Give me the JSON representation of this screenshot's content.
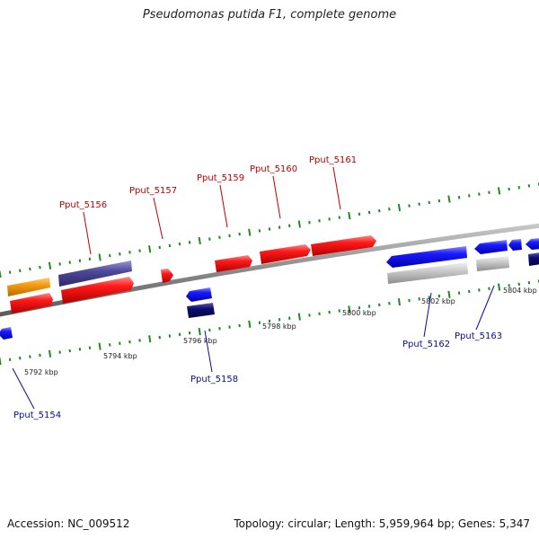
{
  "title": "Pseudomonas putida F1, complete genome",
  "footer": {
    "accession": "Accession: NC_009512",
    "summary": "Topology: circular; Length: 5,959,964 bp; Genes: 5,347"
  },
  "colors": {
    "forward_cds": "#ff1a1a",
    "reverse_cds": "#1a1aff",
    "orange_feature": "#f59a10",
    "purple_feature": "#4f4a9a",
    "navy_feature": "#0c0c6e",
    "grey_feature": "#bdbdbd",
    "backbone": "#8a8a8a",
    "ticks": "#1f8a1f",
    "forward_label": "#c00000",
    "reverse_label": "#0b0b9a"
  },
  "scale_labels": [
    "5792 kbp",
    "5794 kbp",
    "5796 kbp",
    "5798 kbp",
    "5800 kbp",
    "5802 kbp",
    "5804 kbp"
  ],
  "gene_labels": {
    "forward": [
      "Pput_5156",
      "Pput_5157",
      "Pput_5159",
      "Pput_5160",
      "Pput_5161"
    ],
    "reverse": [
      "Pput_5154",
      "Pput_5158",
      "Pput_5162",
      "Pput_5163"
    ]
  }
}
